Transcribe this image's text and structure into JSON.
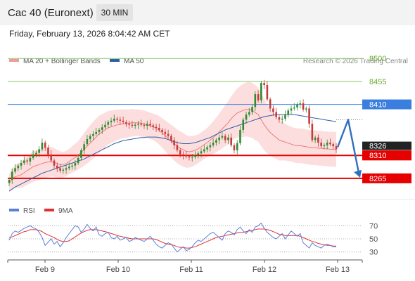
{
  "header": {
    "instrument": "Cac 40 (Euronext)",
    "timeframe": "30 MIN",
    "datetime": "Friday, February 13, 2026 8:04:42 AM CET"
  },
  "colors": {
    "bollinger_fill": "#fbd3d3",
    "ma20": "#ee7b7b",
    "ma50": "#2f5fa7",
    "up_candle": "#2f8a2f",
    "down_candle": "#c73a3a",
    "level_green": "#8cc46a",
    "level_blue": "#3a7fe0",
    "level_red": "#e60000",
    "price_box": "#222222",
    "forecast_arrow": "#2f6fc2",
    "rsi": "#5a7fd6",
    "rsi_ma": "#e03030"
  },
  "chart_data": [
    {
      "type": "candlestick",
      "name": "price",
      "legend": [
        {
          "label": "MA 20 + Bollinger Bands",
          "color": "#f19a9a"
        },
        {
          "label": "MA 50",
          "color": "#2f5fa7"
        }
      ],
      "watermark": "Research © 2026 Trading Central",
      "x_ticks": [
        "Feb 9",
        "Feb 10",
        "Feb 11",
        "Feb 12",
        "Feb 13"
      ],
      "ylim": [
        8218,
        8532
      ],
      "current_price": 8326,
      "levels": [
        {
          "value": 8500,
          "label": "8500",
          "color": "#6aaa30",
          "style": "text"
        },
        {
          "value": 8455,
          "label": "8455",
          "color": "#6aaa30",
          "style": "text"
        },
        {
          "value": 8410,
          "label": "8410",
          "color": "#3a7fe0",
          "style": "box"
        },
        {
          "value": 8310,
          "label": "8310",
          "color": "#e60000",
          "style": "box"
        },
        {
          "value": 8265,
          "label": "8265",
          "color": "#e60000",
          "style": "box"
        }
      ],
      "forecast": [
        8326,
        8380,
        8265
      ],
      "close": [
        8262,
        8278,
        8285,
        8290,
        8295,
        8300,
        8298,
        8305,
        8312,
        8315,
        8322,
        8335,
        8325,
        8312,
        8300,
        8290,
        8285,
        8280,
        8282,
        8285,
        8288,
        8290,
        8295,
        8305,
        8320,
        8332,
        8342,
        8348,
        8352,
        8356,
        8360,
        8365,
        8370,
        8375,
        8378,
        8382,
        8380,
        8378,
        8375,
        8372,
        8370,
        8368,
        8370,
        8372,
        8370,
        8368,
        8372,
        8369,
        8366,
        8364,
        8360,
        8356,
        8352,
        8348,
        8340,
        8330,
        8320,
        8312,
        8310,
        8308,
        8306,
        8307,
        8310,
        8314,
        8318,
        8322,
        8326,
        8330,
        8335,
        8340,
        8345,
        8348,
        8340,
        8345,
        8330,
        8320,
        8334,
        8360,
        8380,
        8390,
        8395,
        8405,
        8430,
        8418,
        8452,
        8448,
        8420,
        8402,
        8395,
        8385,
        8380,
        8382,
        8390,
        8398,
        8402,
        8404,
        8410,
        8412,
        8400,
        8402,
        8372,
        8340,
        8345,
        8335,
        8328,
        8330,
        8335,
        8332,
        8328,
        8322
      ],
      "ma20": [
        8255,
        8265,
        8268,
        8270,
        8272,
        8276,
        8280,
        8284,
        8288,
        8290,
        8292,
        8294,
        8296,
        8297,
        8298,
        8296,
        8294,
        8292,
        8292,
        8294,
        8298,
        8302,
        8306,
        8310,
        8316,
        8322,
        8328,
        8334,
        8340,
        8346,
        8352,
        8356,
        8360,
        8364,
        8366,
        8368,
        8370,
        8371,
        8372,
        8372,
        8373,
        8374,
        8374,
        8374,
        8373,
        8372,
        8370,
        8368,
        8366,
        8363,
        8359,
        8354,
        8349,
        8343,
        8338,
        8333,
        8328,
        8324,
        8321,
        8318,
        8317,
        8318,
        8320,
        8323,
        8327,
        8331,
        8335,
        8340,
        8345,
        8350,
        8356,
        8362,
        8368,
        8374,
        8382,
        8388,
        8393,
        8396,
        8398,
        8400,
        8400,
        8398,
        8394,
        8390,
        8380,
        8370,
        8362,
        8355,
        8350,
        8345,
        8340,
        8338,
        8336,
        8334,
        8332,
        8330,
        8329,
        8329,
        8328,
        8327,
        8326,
        8325,
        8325,
        8324,
        8324,
        8323,
        8323,
        8322,
        8322,
        8322
      ],
      "ma50": [
        8240,
        8244,
        8248,
        8251,
        8254,
        8257,
        8260,
        8263,
        8266,
        8269,
        8272,
        8275,
        8277,
        8279,
        8281,
        8283,
        8285,
        8287,
        8289,
        8291,
        8293,
        8295,
        8297,
        8299,
        8301,
        8303,
        8306,
        8309,
        8312,
        8315,
        8318,
        8321,
        8324,
        8327,
        8330,
        8333,
        8335,
        8337,
        8339,
        8340,
        8341,
        8342,
        8343,
        8344,
        8345,
        8345,
        8346,
        8346,
        8346,
        8346,
        8345,
        8344,
        8343,
        8341,
        8339,
        8337,
        8335,
        8334,
        8333,
        8333,
        8333,
        8334,
        8335,
        8337,
        8339,
        8341,
        8343,
        8345,
        8348,
        8351,
        8354,
        8357,
        8360,
        8362,
        8364,
        8366,
        8368,
        8370,
        8372,
        8374,
        8376,
        8378,
        8380,
        8382,
        8384,
        8386,
        8387,
        8388,
        8389,
        8390,
        8390,
        8390,
        8390,
        8390,
        8390,
        8390,
        8389,
        8388,
        8387,
        8386,
        8385,
        8384,
        8383,
        8382,
        8381,
        8380,
        8379,
        8378,
        8377,
        8376
      ],
      "bb_width": [
        18,
        20,
        22,
        24,
        26,
        27,
        28,
        29,
        30,
        30,
        30,
        30,
        30,
        30,
        29,
        28,
        27,
        26,
        25,
        25,
        25,
        26,
        27,
        28,
        30,
        32,
        34,
        35,
        36,
        36,
        36,
        35,
        34,
        33,
        32,
        31,
        30,
        29,
        28,
        28,
        27,
        27,
        26,
        26,
        26,
        26,
        26,
        26,
        26,
        27,
        28,
        29,
        30,
        31,
        32,
        33,
        33,
        33,
        33,
        32,
        31,
        30,
        29,
        28,
        28,
        28,
        29,
        30,
        32,
        34,
        36,
        38,
        40,
        42,
        44,
        46,
        48,
        50,
        52,
        53,
        54,
        54,
        54,
        53,
        52,
        50,
        48,
        46,
        44,
        42,
        40,
        38,
        36,
        35,
        34,
        34,
        34,
        34,
        34,
        34,
        34,
        34,
        34,
        34,
        34,
        34,
        34,
        34,
        34,
        34
      ]
    },
    {
      "type": "line",
      "name": "indicator",
      "legend": [
        {
          "label": "RSI",
          "color": "#5a7fd6"
        },
        {
          "label": "9MA",
          "color": "#e03030"
        }
      ],
      "y_ticks": [
        70,
        50,
        30
      ],
      "ylim": [
        20,
        80
      ],
      "series": [
        {
          "name": "RSI",
          "values": [
            48,
            58,
            62,
            60,
            63,
            66,
            68,
            70,
            67,
            65,
            60,
            52,
            40,
            45,
            50,
            42,
            46,
            38,
            44,
            52,
            58,
            64,
            70,
            68,
            60,
            65,
            72,
            66,
            62,
            68,
            56,
            54,
            58,
            60,
            52,
            50,
            54,
            48,
            50,
            52,
            46,
            48,
            52,
            50,
            48,
            46,
            50,
            54,
            48,
            42,
            38,
            36,
            40,
            44,
            42,
            36,
            30,
            34,
            38,
            32,
            34,
            38,
            44,
            48,
            46,
            50,
            54,
            58,
            60,
            56,
            52,
            48,
            58,
            62,
            60,
            56,
            64,
            68,
            62,
            58,
            64,
            60,
            68,
            70,
            74,
            66,
            60,
            56,
            52,
            50,
            54,
            58,
            50,
            56,
            62,
            58,
            54,
            58,
            44,
            40,
            36,
            44,
            40,
            38,
            36,
            40,
            42,
            40,
            38,
            38
          ]
        },
        {
          "name": "9MA",
          "values": [
            52,
            53,
            55,
            57,
            59,
            61,
            62,
            64,
            64,
            64,
            63,
            61,
            58,
            56,
            54,
            52,
            49,
            47,
            46,
            46,
            47,
            50,
            53,
            56,
            59,
            61,
            63,
            64,
            64,
            64,
            63,
            62,
            61,
            60,
            58,
            57,
            55,
            54,
            53,
            52,
            51,
            50,
            50,
            50,
            50,
            50,
            50,
            50,
            50,
            49,
            47,
            45,
            43,
            42,
            41,
            40,
            38,
            37,
            37,
            36,
            36,
            37,
            38,
            40,
            42,
            44,
            46,
            48,
            50,
            52,
            53,
            54,
            55,
            56,
            57,
            58,
            59,
            60,
            60,
            61,
            62,
            63,
            64,
            65,
            65,
            65,
            64,
            63,
            61,
            59,
            57,
            56,
            55,
            55,
            55,
            55,
            55,
            54,
            52,
            50,
            48,
            46,
            45,
            43,
            42,
            41,
            40,
            40,
            39,
            39
          ]
        }
      ]
    }
  ]
}
